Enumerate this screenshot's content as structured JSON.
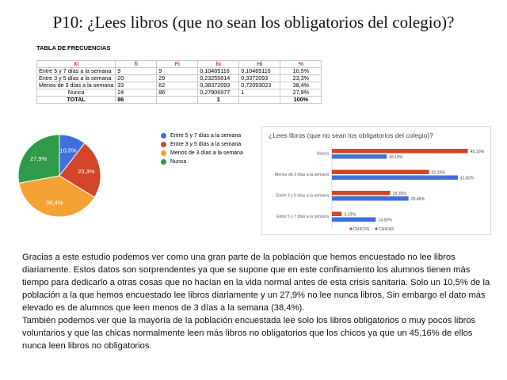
{
  "title": "P10: ¿Lees libros (que no sean los obligatorios del colegio)?",
  "table": {
    "caption": "TABLA DE FRECUENCIAS",
    "headers": [
      "Xi",
      "fi",
      "Fi",
      "hi",
      "Hi",
      "%"
    ],
    "rows": [
      [
        "Entre 5 y 7 días a la semana",
        "9",
        "9",
        "0,10465116",
        "0,10465116",
        "10,5%"
      ],
      [
        "Entre 3 y 5 días a la semana",
        "20",
        "29",
        "0,23255814",
        "0,3372093",
        "23,3%"
      ],
      [
        "Menos de 3 días a la semana",
        "33",
        "62",
        "0,38372093",
        "0,72093023",
        "38,4%"
      ],
      [
        "Nunca",
        "24",
        "86",
        "0,27906977",
        "1",
        "27,9%"
      ]
    ],
    "total": [
      "TOTAL",
      "86",
      "",
      "1",
      "",
      "100%"
    ]
  },
  "chart_data": [
    {
      "type": "pie",
      "labels": [
        "Entre 5 y 7 días a la semana",
        "Entre 3 y 5 días a la semana",
        "Menos de 3 días a la semana",
        "Nunca"
      ],
      "values": [
        10.5,
        23.3,
        38.4,
        27.9
      ],
      "slice_labels": [
        "10,5%",
        "23,3%",
        "38,4%",
        "27,9%"
      ],
      "colors": [
        "#3f6fd8",
        "#d3442b",
        "#f4a233",
        "#2f9a48"
      ],
      "legend": "right"
    },
    {
      "type": "bar",
      "orientation": "horizontal",
      "title": "¿Lees libros (que no sean los obligatorios del colegio)?",
      "categories": [
        "Nunca",
        "Menos de 3 días a la semana",
        "Entre 3 y 5 días a la semana",
        "Entre 5 y 7 días a la semana"
      ],
      "series": [
        {
          "name": "CHICOS",
          "values": [
            45.16,
            32.26,
            19.35,
            3.23
          ],
          "labels": [
            "45,16%",
            "32,26%",
            "19,35%",
            "3,23%"
          ],
          "color": "#d3442b"
        },
        {
          "name": "CHICAS",
          "values": [
            18.18,
            41.82,
            25.45,
            14.55
          ],
          "labels": [
            "18,18%",
            "41,82%",
            "25,45%",
            "14,55%"
          ],
          "color": "#3f6fd8"
        }
      ],
      "xlim": [
        0,
        50
      ],
      "legend": "bottom-left"
    }
  ],
  "paragraph": [
    "Gracias a este estudio podemos ver como una gran parte de la población que hemos encuestado no lee libros diariamente. Estos datos son sorprendentes ya que se supone que en este confinamiento los alumnos tienen más tiempo para dedicarlo a otras cosas que no hacían en la vida normal antes de esta crisis sanitaria. Solo un 10,5% de la población a la que hemos encuestado lee libros diariamente y un 27,9% no lee nunca libros, Sin embargo el dato más elevado es de alumnos que leen menos de 3 días a la semana (38,4%).",
    "También podemos ver que la mayoría de la población encuestada lee solo los libros obligatorios o muy pocos libros voluntarios y que las chicas normalmente leen más libros no obligatorios que los chicos ya que un 45,16% de ellos nunca leen libros no obligatorios."
  ]
}
